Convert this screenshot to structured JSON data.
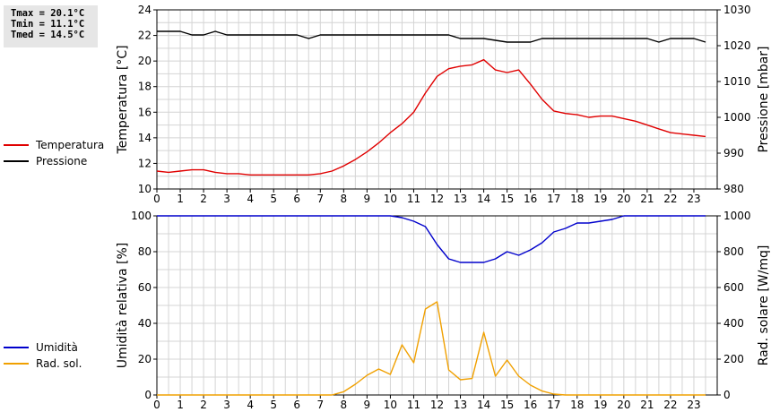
{
  "stats": {
    "tmax": "Tmax = 20.1°C",
    "tmin": "Tmin = 11.1°C",
    "tmed": "Tmed = 14.5°C"
  },
  "chart_data": [
    {
      "type": "line",
      "xlabel": "",
      "x_ticks": [
        0,
        1,
        2,
        3,
        4,
        5,
        6,
        7,
        8,
        9,
        10,
        11,
        12,
        13,
        14,
        15,
        16,
        17,
        18,
        19,
        20,
        21,
        22,
        23
      ],
      "xlim": [
        0,
        24
      ],
      "ylabel": "Temperatura [°C]",
      "ylim": [
        10,
        24
      ],
      "y_ticks": [
        10,
        12,
        14,
        16,
        18,
        20,
        22,
        24
      ],
      "y2label": "Pressione [mbar]",
      "y2lim": [
        980,
        1030
      ],
      "y2_ticks": [
        980,
        990,
        1000,
        1010,
        1020,
        1030
      ],
      "legend_position": "left",
      "grid": true,
      "series": [
        {
          "name": "Temperatura",
          "axis": "left",
          "color": "#e00000",
          "x": [
            0,
            0.5,
            1,
            1.5,
            2,
            2.5,
            3,
            3.5,
            4,
            4.5,
            5,
            5.5,
            6,
            6.5,
            7,
            7.5,
            8,
            8.5,
            9,
            9.5,
            10,
            10.5,
            11,
            11.5,
            12,
            12.5,
            13,
            13.5,
            14,
            14.5,
            15,
            15.5,
            16,
            16.5,
            17,
            17.5,
            18,
            18.5,
            19,
            19.5,
            20,
            20.5,
            21,
            21.5,
            22,
            22.5,
            23,
            23.5
          ],
          "y": [
            11.4,
            11.3,
            11.4,
            11.5,
            11.5,
            11.3,
            11.2,
            11.2,
            11.1,
            11.1,
            11.1,
            11.1,
            11.1,
            11.1,
            11.2,
            11.4,
            11.8,
            12.3,
            12.9,
            13.6,
            14.4,
            15.1,
            16.0,
            17.5,
            18.8,
            19.4,
            19.6,
            19.7,
            20.1,
            19.3,
            19.1,
            19.3,
            18.2,
            17.0,
            16.1,
            15.9,
            15.8,
            15.6,
            15.7,
            15.7,
            15.5,
            15.3,
            15.0,
            14.7,
            14.4,
            14.3,
            14.2,
            14.1
          ]
        },
        {
          "name": "Pressione",
          "axis": "right",
          "color": "#000000",
          "x": [
            0,
            1,
            1.5,
            2,
            2.5,
            3,
            4,
            5,
            6,
            6.5,
            7,
            8,
            9,
            10,
            11,
            12,
            12.5,
            13,
            14,
            15,
            16,
            16.5,
            17,
            18,
            19,
            20,
            21,
            21.5,
            22,
            23,
            23.5
          ],
          "y": [
            1024,
            1024,
            1023,
            1023,
            1024,
            1023,
            1023,
            1023,
            1023,
            1022,
            1023,
            1023,
            1023,
            1023,
            1023,
            1023,
            1023,
            1022,
            1022,
            1021,
            1021,
            1022,
            1022,
            1022,
            1022,
            1022,
            1022,
            1021,
            1022,
            1022,
            1021
          ]
        }
      ]
    },
    {
      "type": "line",
      "xlabel": "",
      "x_ticks": [
        0,
        1,
        2,
        3,
        4,
        5,
        6,
        7,
        8,
        9,
        10,
        11,
        12,
        13,
        14,
        15,
        16,
        17,
        18,
        19,
        20,
        21,
        22,
        23
      ],
      "xlim": [
        0,
        24
      ],
      "ylabel": "Umidità relativa [%]",
      "ylim": [
        0,
        100
      ],
      "y_ticks": [
        0,
        20,
        40,
        60,
        80,
        100
      ],
      "y2label": "Rad. solare [W/mq]",
      "y2lim": [
        0,
        1000
      ],
      "y2_ticks": [
        0,
        200,
        400,
        600,
        800,
        1000
      ],
      "legend_position": "left",
      "grid": true,
      "series": [
        {
          "name": "Umidità",
          "axis": "left",
          "color": "#0000cc",
          "x": [
            0,
            1,
            2,
            3,
            4,
            5,
            6,
            7,
            8,
            9,
            10,
            10.5,
            11,
            11.5,
            12,
            12.5,
            13,
            13.5,
            14,
            14.5,
            15,
            15.5,
            16,
            16.5,
            17,
            17.5,
            18,
            18.5,
            19,
            19.5,
            20,
            21,
            22,
            23,
            23.5
          ],
          "y": [
            100,
            100,
            100,
            100,
            100,
            100,
            100,
            100,
            100,
            100,
            100,
            99,
            97,
            94,
            84,
            76,
            74,
            74,
            74,
            76,
            80,
            78,
            81,
            85,
            91,
            93,
            96,
            96,
            97,
            98,
            100,
            100,
            100,
            100,
            100
          ]
        },
        {
          "name": "Rad. sol.",
          "axis": "right",
          "color": "#f0a000",
          "x": [
            0,
            1,
            2,
            3,
            4,
            5,
            6,
            7,
            7.5,
            8,
            8.5,
            9,
            9.5,
            10,
            10.5,
            11,
            11.5,
            12,
            12.5,
            13,
            13.5,
            14,
            14.5,
            15,
            15.5,
            16,
            16.5,
            17,
            17.5,
            18,
            19,
            20,
            21,
            22,
            23,
            23.5
          ],
          "y": [
            0,
            0,
            0,
            0,
            0,
            0,
            0,
            0,
            0,
            18,
            60,
            110,
            145,
            115,
            280,
            180,
            480,
            520,
            140,
            85,
            92,
            350,
            105,
            195,
            105,
            55,
            22,
            5,
            0,
            0,
            0,
            0,
            0,
            0,
            0,
            0
          ]
        }
      ]
    }
  ]
}
